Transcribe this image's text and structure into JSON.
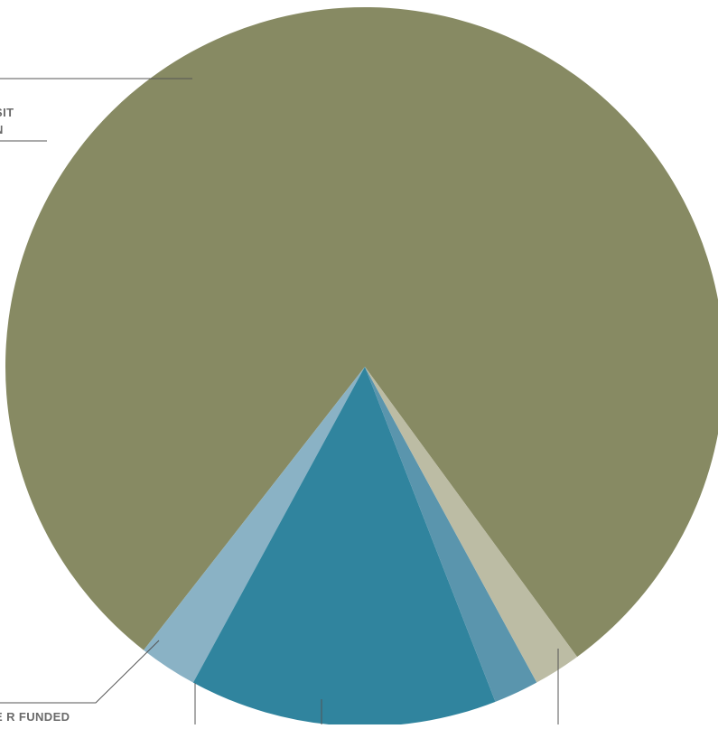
{
  "chart_data": {
    "type": "pie",
    "title": "",
    "legend": "none",
    "slices": [
      {
        "label": "",
        "value": 78.6,
        "color": "#878a63"
      },
      {
        "label": "",
        "value": 2.6,
        "color": "#8ab2c5"
      },
      {
        "label": "",
        "value": 13.7,
        "color": "#30849e"
      },
      {
        "label": "",
        "value": 2.0,
        "color": "#5a95ad"
      },
      {
        "label": "",
        "value": 2.1,
        "color": "#bcbca4"
      }
    ],
    "annotations": [
      "SIT",
      "N",
      "E R FUNDED"
    ],
    "leader_color": "#555555"
  }
}
